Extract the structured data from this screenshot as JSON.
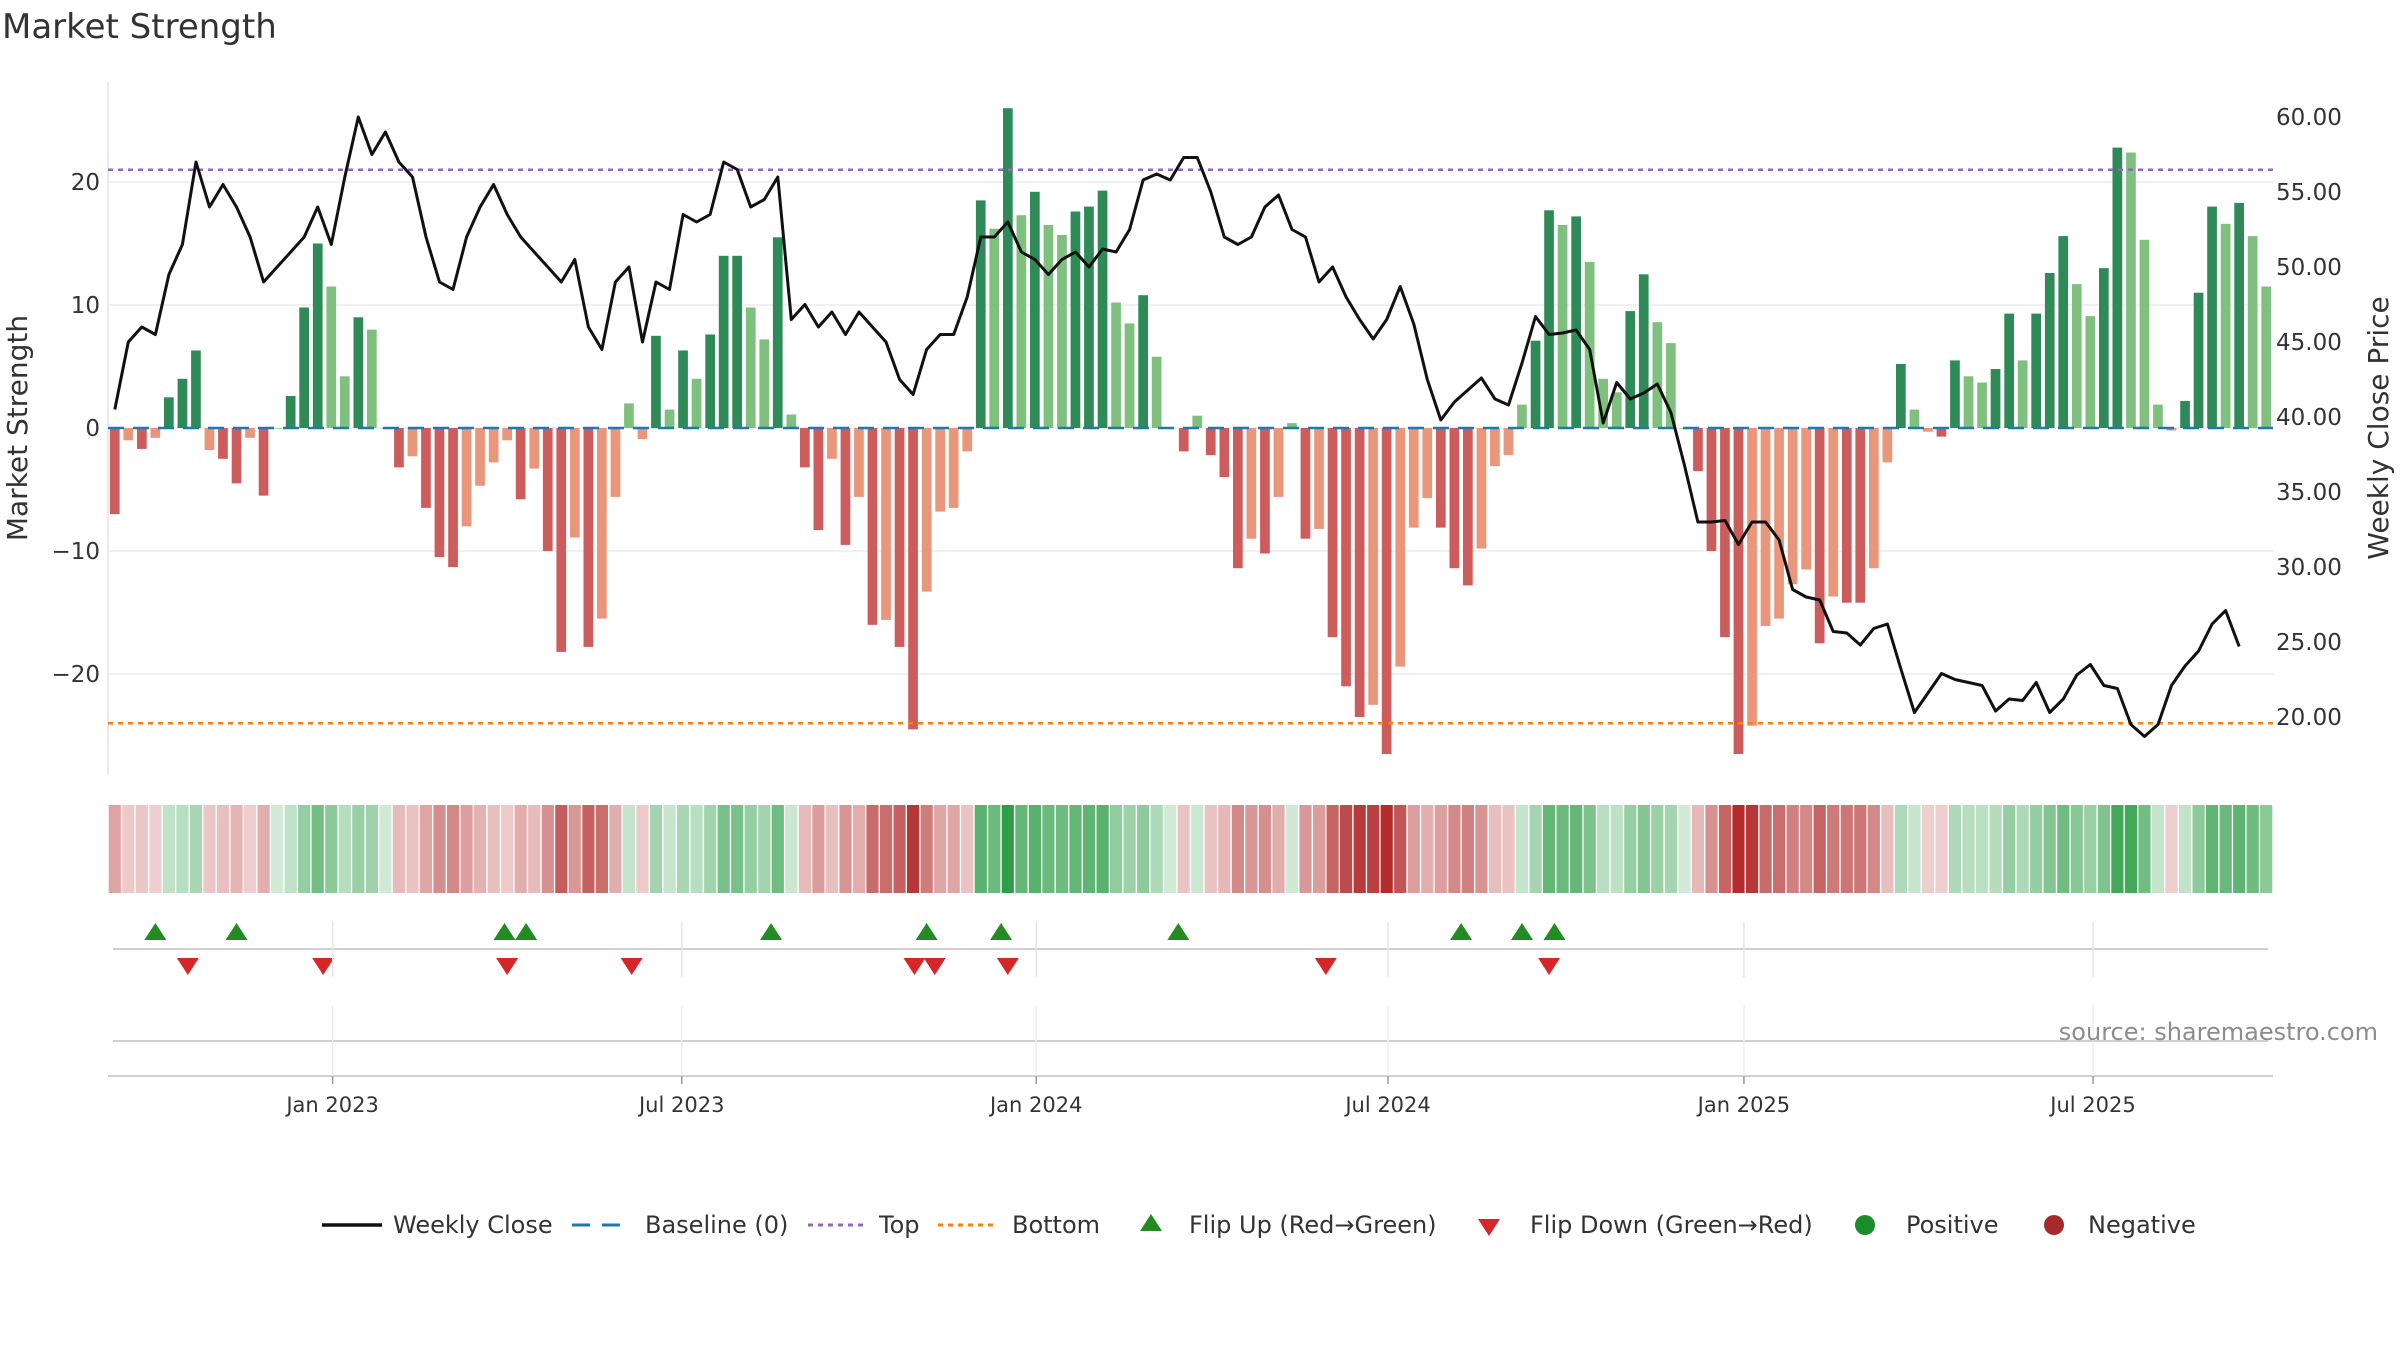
{
  "title": "Market Strength",
  "source": "source: sharemaestro.com",
  "colors": {
    "pos_dark": "#2e8b57",
    "pos_light": "#7fc07f",
    "neg_dark": "#cd5c5c",
    "neg_light": "#e9967a",
    "line": "#111111",
    "baseline": "#1f77b4",
    "top": "#9467bd",
    "bottom": "#ff7f0e",
    "flip_up": "#228b22",
    "flip_down": "#d62728",
    "positive": "#1a8c2a",
    "negative": "#a52a2a"
  },
  "chart_data": {
    "type": "bar",
    "title": "Market Strength",
    "ylabel_left": "Market Strength",
    "ylabel_right": "Weekly Close Price",
    "ylim_left": [
      -28,
      28
    ],
    "ylim_right": [
      14.0,
      60.5
    ],
    "yticks_left": [
      20,
      10,
      0,
      -10,
      -20
    ],
    "yticks_left_labels": [
      "20",
      "10",
      "0",
      "−10",
      "−20"
    ],
    "yticks_right": [
      60,
      55,
      50,
      45,
      40,
      35,
      30,
      25,
      20
    ],
    "yticks_right_labels": [
      "60.00",
      "55.00",
      "50.00",
      "45.00",
      "40.00",
      "35.00",
      "30.00",
      "25.00",
      "20.00"
    ],
    "x_start": "2022-09-12",
    "x_ticks": [
      {
        "label": "Jan 2023",
        "week": 16.6
      },
      {
        "label": "Jul 2023",
        "week": 42.4
      },
      {
        "label": "Jan 2024",
        "week": 68.6
      },
      {
        "label": "Jul 2024",
        "week": 94.6
      },
      {
        "label": "Jan 2025",
        "week": 120.9
      },
      {
        "label": "Jul 2025",
        "week": 146.7
      }
    ],
    "top_level": 21,
    "bottom_level": -24,
    "baseline": 0,
    "market_strength": [
      -7,
      -1,
      -1.7,
      -0.8,
      2.5,
      4,
      6.3,
      -1.8,
      -2.5,
      -4.5,
      -0.8,
      -5.5,
      0,
      2.6,
      9.8,
      15,
      11.5,
      4.2,
      9,
      8,
      0,
      -3.2,
      -2.3,
      -6.5,
      -10.5,
      -11.3,
      -8,
      -4.7,
      -2.8,
      -1,
      -5.8,
      -3.3,
      -10,
      -18.2,
      -8.9,
      -17.8,
      -15.5,
      -5.6,
      2,
      -0.9,
      7.5,
      1.5,
      6.3,
      4,
      7.6,
      14,
      14,
      9.8,
      7.2,
      15.5,
      1.1,
      -3.2,
      -8.3,
      -2.5,
      -9.5,
      -5.6,
      -16,
      -15.6,
      -17.8,
      -24.5,
      -13.3,
      -6.8,
      -6.5,
      -1.9,
      18.5,
      16.2,
      26,
      17.3,
      19.2,
      16.5,
      15.7,
      17.6,
      18,
      19.3,
      10.2,
      8.5,
      10.8,
      5.8,
      0,
      -1.9,
      1,
      -2.2,
      -4,
      -11.4,
      -9,
      -10.2,
      -5.6,
      0.4,
      -9,
      -8.2,
      -17,
      -21,
      -23.5,
      -22.5,
      -26.5,
      -19.4,
      -8.1,
      -5.7,
      -8.1,
      -11.4,
      -12.8,
      -9.8,
      -3.1,
      -2.2,
      1.9,
      7.1,
      17.7,
      16.5,
      17.2,
      13.5,
      4,
      2.9,
      9.5,
      12.5,
      8.6,
      6.9,
      0,
      -3.5,
      -10,
      -17,
      -26.5,
      -24.2,
      -16.1,
      -15.5,
      -12.7,
      -11.5,
      -17.5,
      -13.7,
      -14.2,
      -14.2,
      -11.4,
      -2.8,
      5.2,
      1.5,
      -0.3,
      -0.7,
      5.5,
      4.2,
      3.7,
      4.8,
      9.3,
      5.5,
      9.3,
      12.6,
      15.6,
      11.7,
      9.1,
      13,
      22.8,
      22.4,
      15.3,
      1.9,
      -0.2,
      2.2,
      11,
      18,
      16.6,
      18.3,
      15.6,
      11.5
    ],
    "weekly_close": [
      40.5,
      45,
      46,
      45.5,
      49.5,
      51.5,
      57,
      54,
      55.5,
      54,
      52,
      49,
      50,
      51,
      52,
      54,
      51.5,
      56,
      60,
      57.5,
      59,
      57,
      56,
      52,
      49,
      48.5,
      52,
      54,
      55.5,
      53.5,
      52,
      51,
      50,
      49,
      50.5,
      46,
      44.5,
      49,
      50,
      45,
      49,
      48.5,
      53.5,
      53,
      53.5,
      57,
      56.5,
      54,
      54.5,
      56,
      46.5,
      47.5,
      46,
      47,
      45.5,
      47,
      46,
      45,
      42.5,
      41.5,
      44.5,
      45.5,
      45.5,
      48,
      52,
      52,
      53,
      51,
      50.5,
      49.5,
      50.5,
      51,
      50,
      51.2,
      51,
      52.5,
      55.8,
      56.2,
      55.8,
      57.3,
      57.3,
      55,
      52,
      51.5,
      52,
      54,
      54.8,
      52.5,
      52,
      49,
      50,
      48,
      46.5,
      45.2,
      46.5,
      48.7,
      46.2,
      42.5,
      39.8,
      41,
      41.8,
      42.6,
      41.2,
      40.8,
      43.6,
      46.7,
      45.5,
      45.6,
      45.8,
      44.5,
      39.6,
      42.3,
      41.2,
      41.6,
      42.2,
      40.3,
      36.8,
      33,
      33,
      33.1,
      31.5,
      33,
      33,
      31.8,
      28.5,
      28,
      27.8,
      25.7,
      25.6,
      24.8,
      25.9,
      26.2,
      23.2,
      20.3,
      21.6,
      22.9,
      22.5,
      22.3,
      22.1,
      20.4,
      21.2,
      21.1,
      22.3,
      20.3,
      21.2,
      22.8,
      23.5,
      22.1,
      21.9,
      19.5,
      18.7,
      19.5,
      22.1,
      23.4,
      24.4,
      26.2,
      27.1,
      24.7
    ]
  },
  "flips_up_weeks": [
    3,
    9,
    28.8,
    30.4,
    48.5,
    60,
    65.5,
    78.6
  ],
  "flips_down_weeks": [
    5.4,
    15.4,
    29,
    38.2,
    59.1,
    60.6,
    66,
    89.5
  ],
  "flips_up_weeks_b": [
    99.5,
    104,
    106.4
  ],
  "flips_down_weeks_b": [
    106
  ],
  "legend": [
    {
      "label": "Weekly Close",
      "kind": "line"
    },
    {
      "label": "Baseline (0)",
      "kind": "dash"
    },
    {
      "label": "Top",
      "kind": "dot-purple"
    },
    {
      "label": "Bottom",
      "kind": "dot-orange"
    },
    {
      "label": "Flip Up (Red→Green)",
      "kind": "tri-up"
    },
    {
      "label": "Flip Down (Green→Red)",
      "kind": "tri-down"
    },
    {
      "label": "Positive",
      "kind": "dot-green"
    },
    {
      "label": "Negative",
      "kind": "dot-red"
    }
  ]
}
